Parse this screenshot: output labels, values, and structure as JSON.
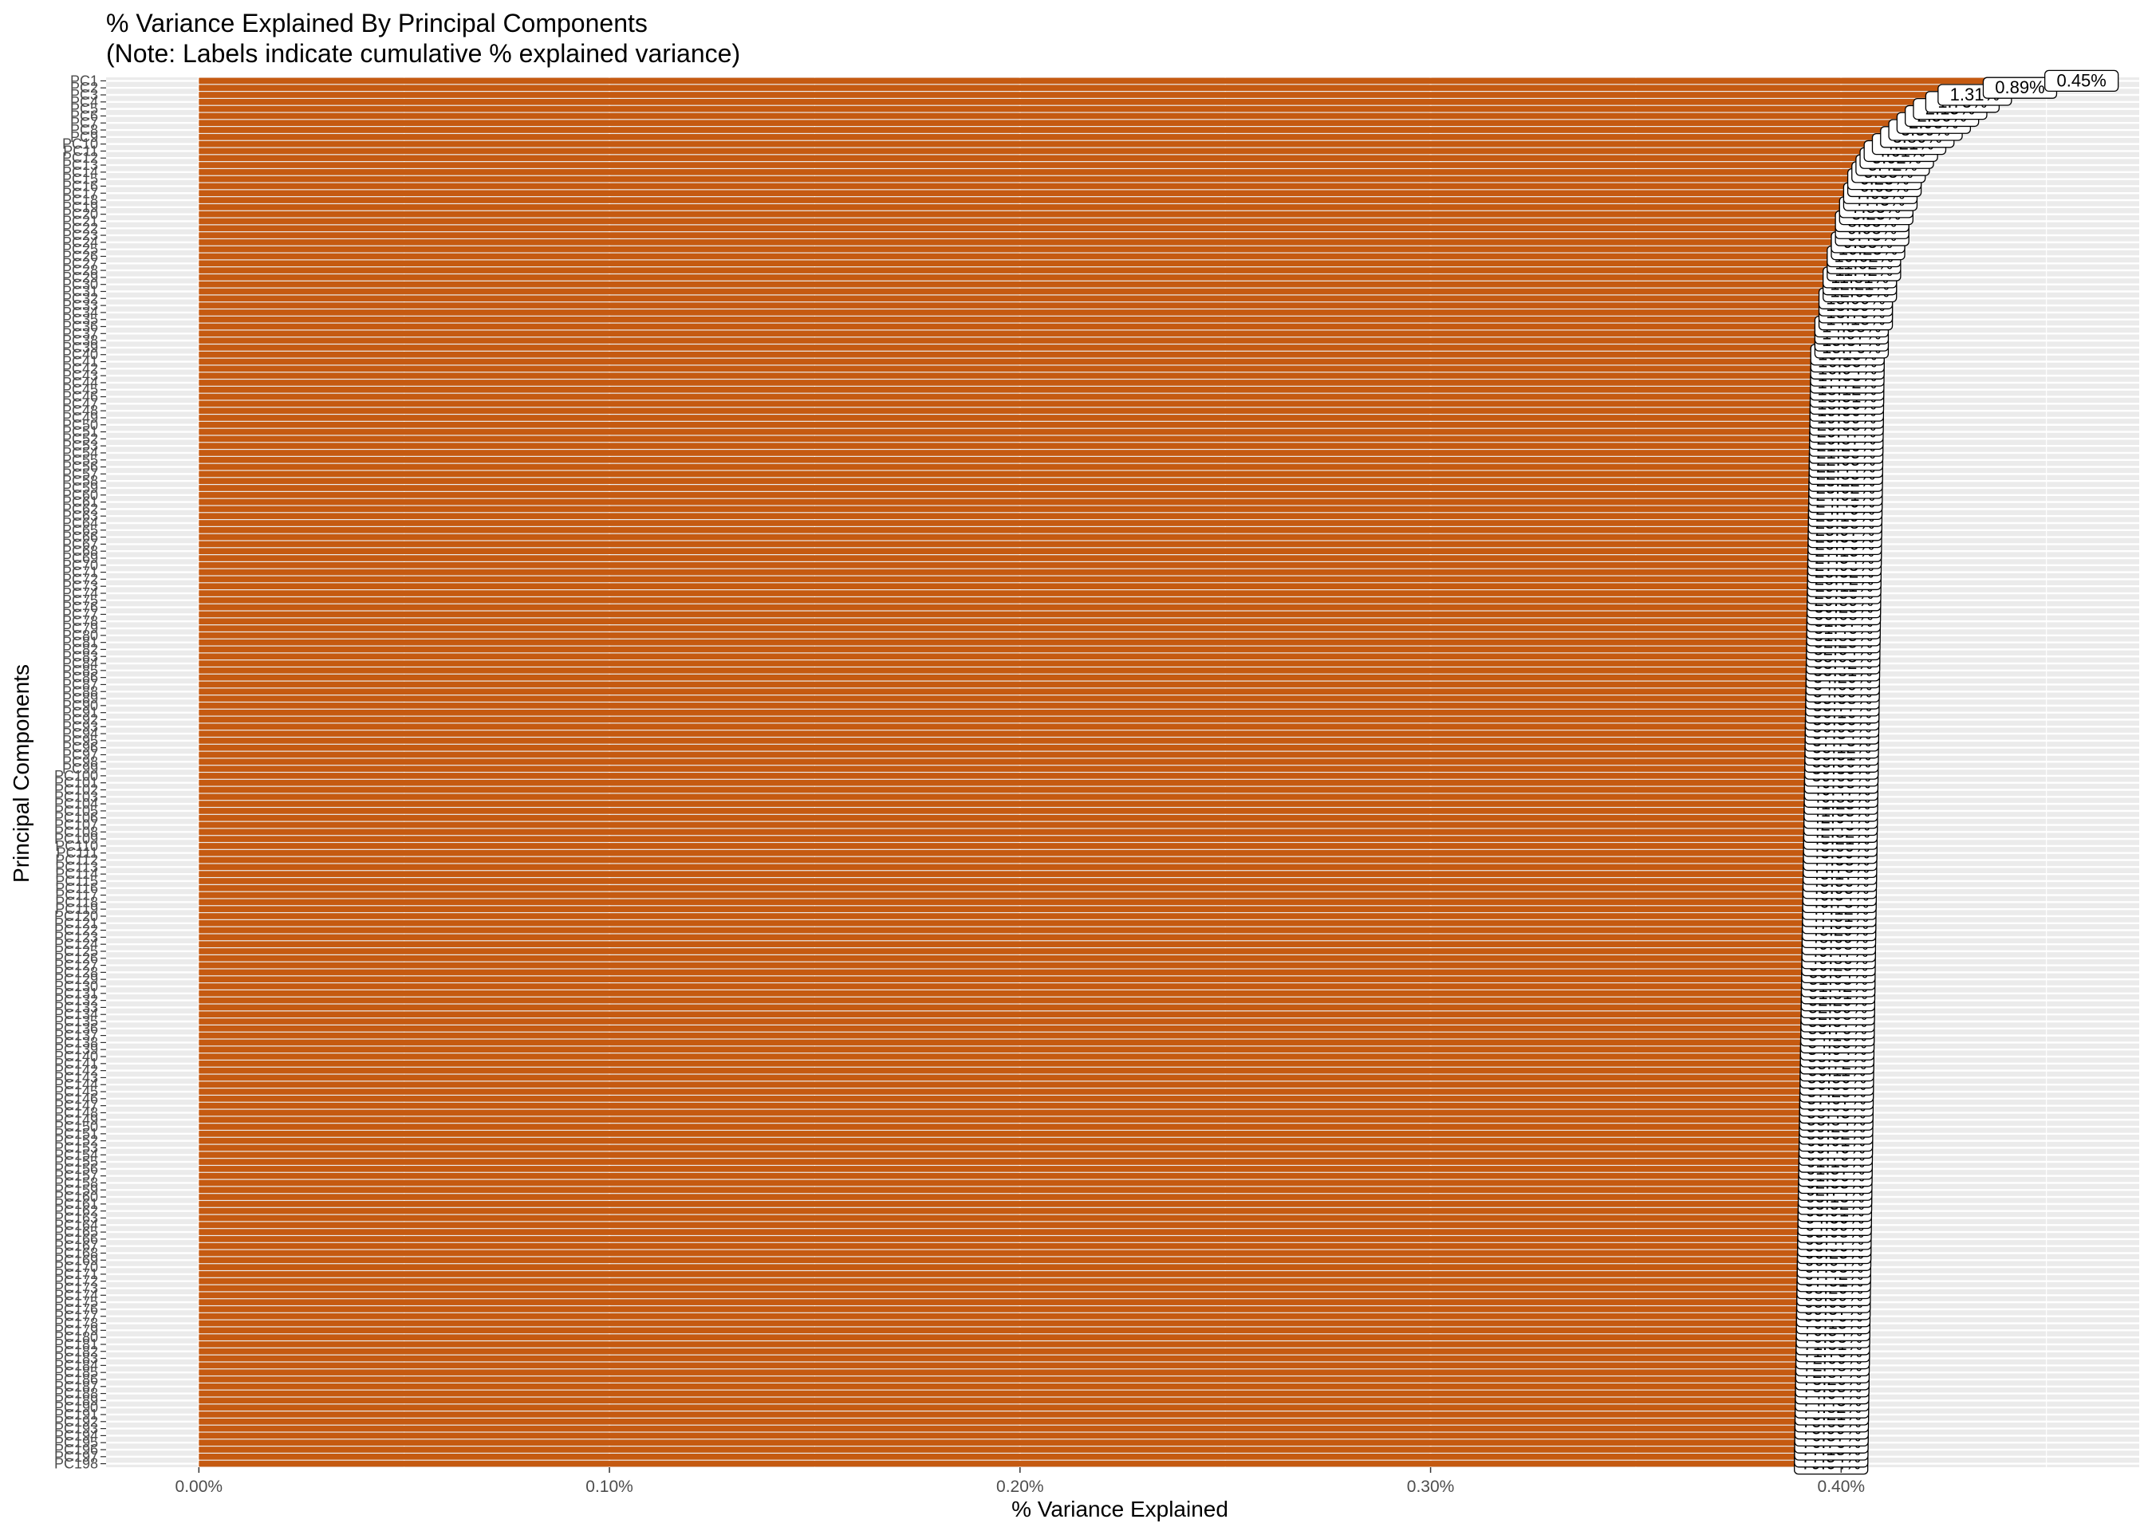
{
  "chart_data": {
    "type": "bar",
    "orientation": "horizontal",
    "title": "% Variance Explained By Principal Components",
    "subtitle": "(Note: Labels indicate cumulative % explained variance)",
    "xlabel": "% Variance Explained",
    "ylabel": "Principal Components",
    "xlim": [
      -0.0226,
      0.4726
    ],
    "x_ticks": [
      0.0,
      0.1,
      0.2,
      0.3,
      0.4
    ],
    "x_tick_labels": [
      "0.00%",
      "0.10%",
      "0.20%",
      "0.30%",
      "0.40%"
    ],
    "grid": true,
    "legend": "none",
    "bar_color": "#c55a11",
    "panel_color": "#ebebeb",
    "label_box_color": "#ffffff",
    "category_prefix": "PC",
    "n_components": 198,
    "values_first_40": [
      0.45,
      0.435,
      0.424,
      0.421,
      0.418,
      0.416,
      0.414,
      0.412,
      0.41,
      0.408,
      0.406,
      0.405,
      0.404,
      0.403,
      0.402,
      0.402,
      0.401,
      0.401,
      0.4,
      0.4,
      0.399,
      0.399,
      0.399,
      0.398,
      0.398,
      0.397,
      0.397,
      0.397,
      0.396,
      0.396,
      0.396,
      0.395,
      0.395,
      0.395,
      0.395,
      0.394,
      0.394,
      0.394,
      0.394,
      0.393
    ],
    "values_tail_start": 0.393,
    "values_tail_end": 0.389,
    "cumulative_labels_visible": [
      "0.45%",
      "79.64%"
    ]
  }
}
